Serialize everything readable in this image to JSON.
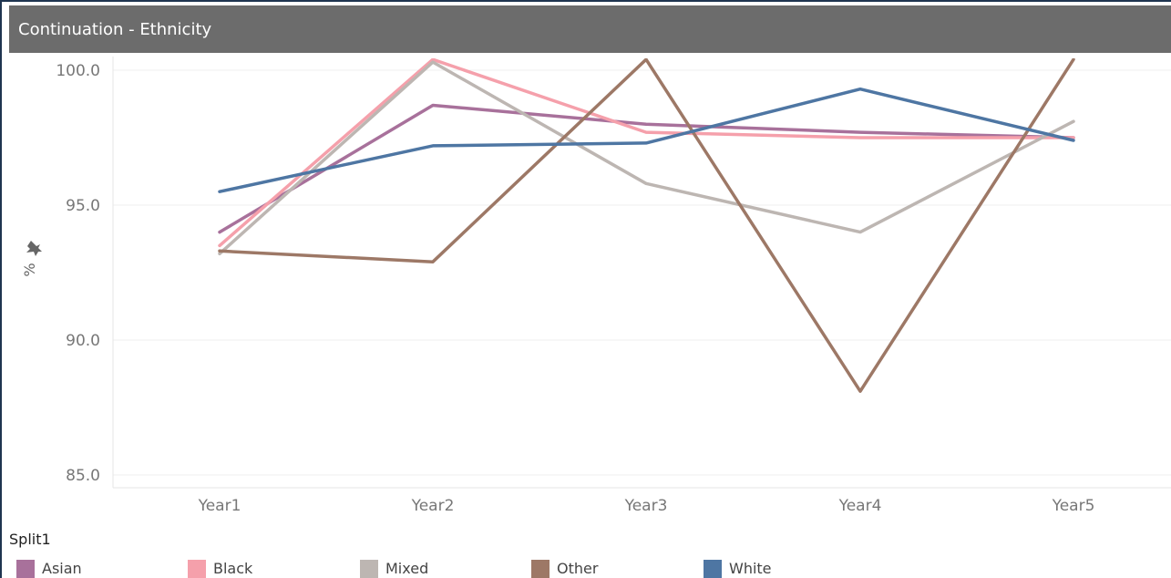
{
  "window": {
    "title": "Continuation - Ethnicity"
  },
  "legend": {
    "title": "Split1"
  },
  "chart_data": {
    "type": "line",
    "title": "Continuation - Ethnicity",
    "xlabel": "",
    "ylabel": "%",
    "categories": [
      "Year1",
      "Year2",
      "Year3",
      "Year4",
      "Year5"
    ],
    "ylim": [
      85,
      100
    ],
    "yticks": [
      85,
      90,
      95,
      100
    ],
    "ytick_labels": [
      "85.0",
      "90.0",
      "95.0",
      "100.0"
    ],
    "grid": true,
    "legend_position": "bottom",
    "series": [
      {
        "name": "Asian",
        "color": "#a8719b",
        "values": [
          94.0,
          98.7,
          98.0,
          97.7,
          97.5
        ]
      },
      {
        "name": "Black",
        "color": "#f5a0ab",
        "values": [
          93.5,
          100.4,
          97.7,
          97.5,
          97.5
        ]
      },
      {
        "name": "Mixed",
        "color": "#bdb6b2",
        "values": [
          93.2,
          100.3,
          95.8,
          94.0,
          98.1
        ]
      },
      {
        "name": "Other",
        "color": "#9d7866",
        "values": [
          93.3,
          92.9,
          100.4,
          88.1,
          100.4
        ]
      },
      {
        "name": "White",
        "color": "#4e76a3",
        "values": [
          95.5,
          97.2,
          97.3,
          99.3,
          97.4
        ]
      }
    ]
  }
}
